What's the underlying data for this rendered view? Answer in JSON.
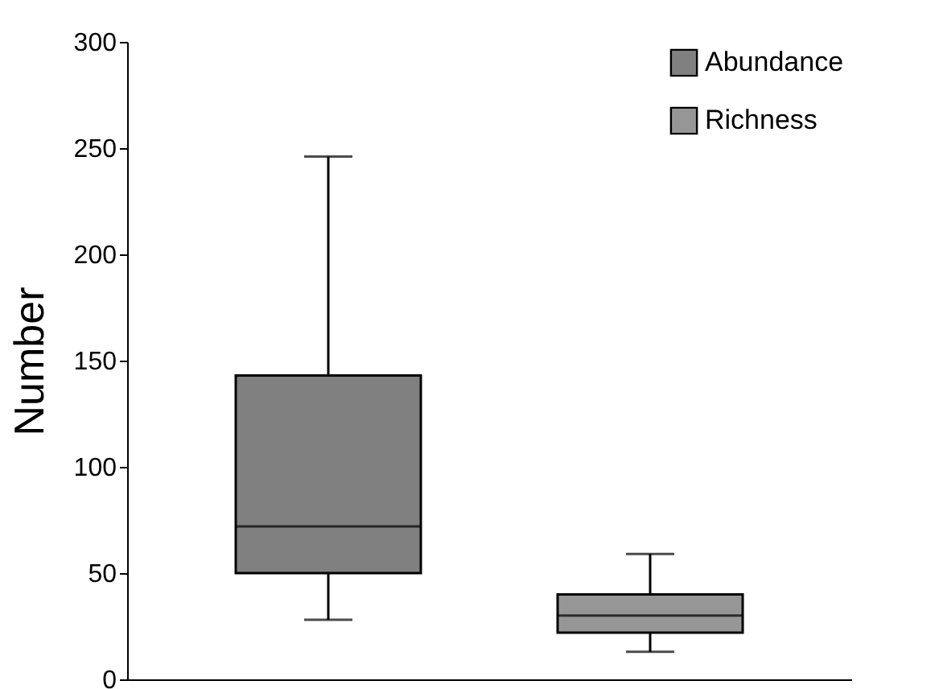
{
  "chart_data": {
    "type": "box",
    "ylabel": "Number",
    "categories": [
      null,
      null
    ],
    "series": [
      {
        "name": "Abundance",
        "color": "#808080",
        "boxes": [
          {
            "low": 28,
            "q1": 50,
            "median": 72,
            "q3": 143,
            "high": 246
          },
          null
        ]
      },
      {
        "name": "Richness",
        "color": "#969696",
        "boxes": [
          null,
          {
            "low": 13,
            "q1": 22,
            "median": 30,
            "q3": 40,
            "high": 59
          }
        ]
      }
    ],
    "ylim": [
      0,
      300
    ],
    "yticks": [
      0,
      50,
      100,
      150,
      200,
      250,
      300
    ],
    "grid": false,
    "legend": "top right"
  }
}
